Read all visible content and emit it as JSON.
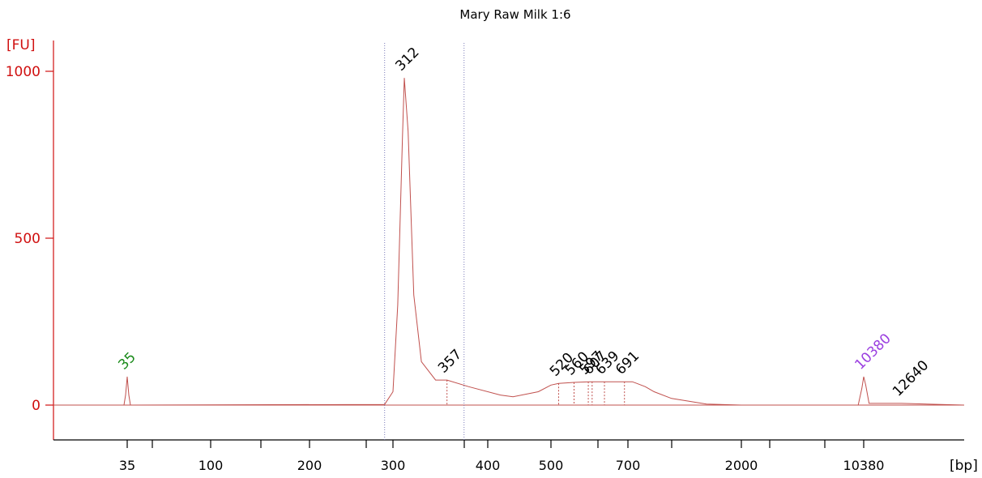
{
  "chart_data": {
    "type": "line",
    "title": "Mary Raw Milk 1:6",
    "ylabel": "[FU]",
    "xlabel": "[bp]",
    "ylim": [
      -85,
      1090
    ],
    "yticks": [
      0,
      500,
      1000
    ],
    "x_tick_labels": [
      "35",
      "100",
      "200",
      "300",
      "400",
      "500",
      "700",
      "2000",
      "10380"
    ],
    "x_scale": "non-linear (electrophoresis size ladder)",
    "grid": false,
    "colors": {
      "trace": "#c0504d",
      "axis": "#d01010",
      "lower_marker": "#1a8a1a",
      "upper_marker": "#9b3fe0",
      "peak_label": "#000000",
      "region_line": "#7a7ab8"
    },
    "region_markers_bp": [
      290,
      375
    ],
    "series": [
      {
        "x_bp": [
          35,
          290,
          300,
          305,
          310,
          312,
          316,
          322,
          330,
          345,
          357,
          380,
          420,
          440,
          480,
          500,
          520,
          560,
          600,
          700,
          750,
          800,
          900,
          1000,
          1200,
          1600,
          2000,
          10000,
          10250,
          10380,
          10500,
          10700,
          12640
        ],
        "y": [
          85,
          2,
          40,
          300,
          800,
          980,
          820,
          330,
          130,
          75,
          75,
          55,
          30,
          25,
          40,
          60,
          65,
          68,
          70,
          70,
          70,
          65,
          55,
          40,
          20,
          3,
          0,
          0,
          50,
          85,
          60,
          5,
          5
        ]
      }
    ],
    "peak_labels": [
      {
        "label": "35",
        "x_bp": 35,
        "y": 85,
        "role": "lower-marker"
      },
      {
        "label": "312",
        "x_bp": 312,
        "y": 980,
        "role": "peak"
      },
      {
        "label": "357",
        "x_bp": 357,
        "y": 75,
        "role": "peak"
      },
      {
        "label": "520",
        "x_bp": 520,
        "y": 65,
        "role": "peak"
      },
      {
        "label": "560",
        "x_bp": 560,
        "y": 68,
        "role": "peak"
      },
      {
        "label": "597",
        "x_bp": 597,
        "y": 70,
        "role": "peak"
      },
      {
        "label": "607",
        "x_bp": 607,
        "y": 70,
        "role": "peak"
      },
      {
        "label": "639",
        "x_bp": 639,
        "y": 70,
        "role": "peak"
      },
      {
        "label": "691",
        "x_bp": 691,
        "y": 70,
        "role": "peak"
      },
      {
        "label": "10380",
        "x_bp": 10380,
        "y": 85,
        "role": "upper-marker"
      },
      {
        "label": "12640",
        "x_bp": 12640,
        "y": 5,
        "role": "peak"
      }
    ]
  }
}
